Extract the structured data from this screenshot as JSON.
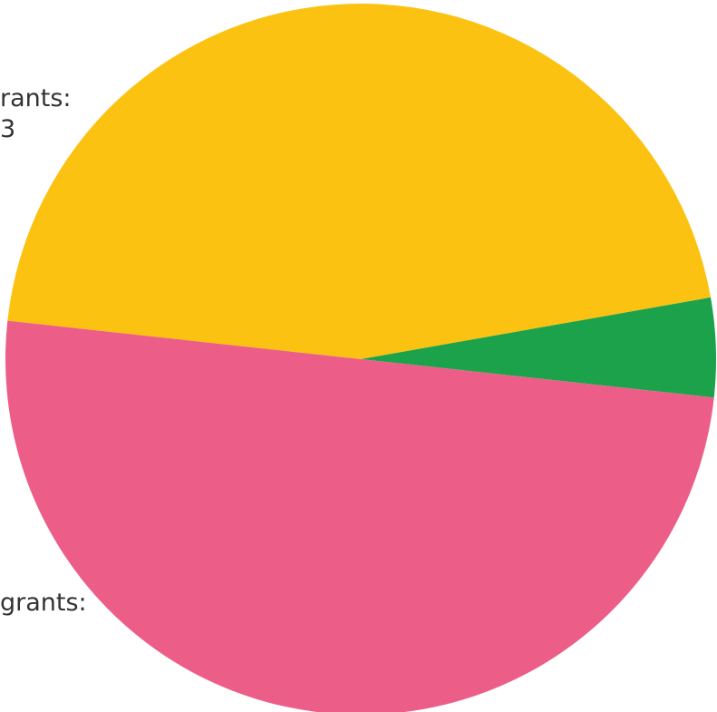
{
  "chart_data": {
    "type": "pie",
    "slices": [
      {
        "label_lines": [
          "rants:",
          "3"
        ],
        "value": 45.5,
        "color": "#fcc211"
      },
      {
        "label_lines": [],
        "value": 4.5,
        "color": "#1da24c"
      },
      {
        "label_lines": [
          "grants:"
        ],
        "value": 50.0,
        "color": "#ec5e88"
      }
    ],
    "start_angle_deg": 186.2,
    "direction": "clockwise",
    "legend": "none"
  }
}
